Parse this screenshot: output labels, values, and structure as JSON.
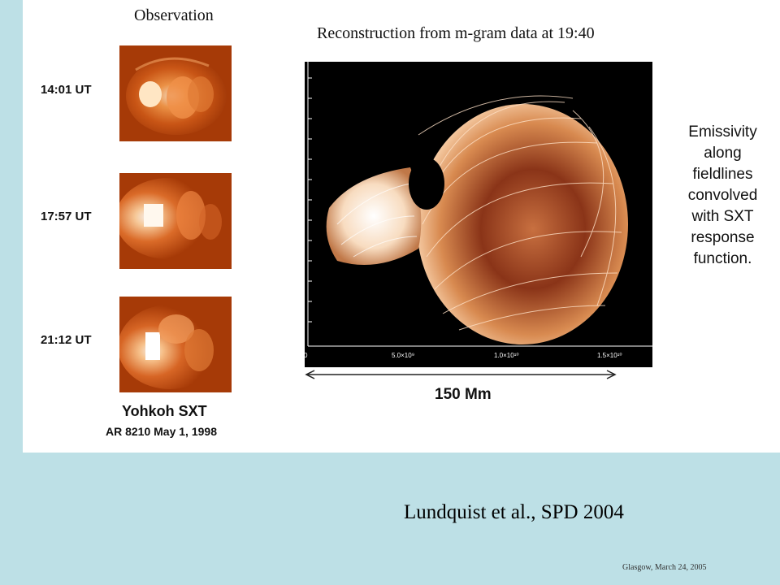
{
  "observation": {
    "title": "Observation",
    "times": [
      "14:01 UT",
      "17:57 UT",
      "21:12 UT"
    ],
    "instrument": "Yohkoh SXT",
    "region": "AR 8210 May 1, 1998"
  },
  "reconstruction": {
    "title": "Reconstruction from m-gram data at 19:40",
    "axis_ticks": [
      "0",
      "5.0×10⁹",
      "1.0×10¹⁰",
      "1.5×10¹⁰"
    ],
    "scale": "150 Mm"
  },
  "caption": {
    "lines": [
      "Emissivity",
      "along",
      "fieldlines",
      "convolved",
      "with SXT",
      "response",
      "function."
    ]
  },
  "citation": "Lundquist  et al., SPD 2004",
  "footer": "Glasgow,  March 24, 2005",
  "colors": {
    "background": "#bde0e6",
    "panel": "#ffffff",
    "sxt_dark": "#a63a07",
    "sxt_bright": "#ffd8a8",
    "fieldline": "#e07a3a"
  }
}
